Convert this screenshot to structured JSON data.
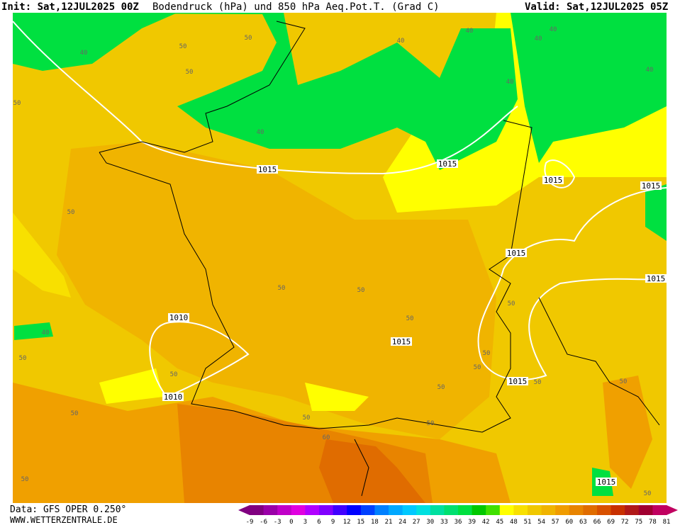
{
  "header": {
    "init": "Init: Sat,12JUL2025 00Z",
    "title": "Bodendruck (hPa) und 850 hPa Aeq.Pot.T. (Grad C)",
    "valid": "Valid: Sat,12JUL2025 05Z"
  },
  "footer": {
    "data": "Data: GFS OPER 0.250°",
    "site": "WWW.WETTERZENTRALE.DE"
  },
  "colorbar": {
    "ticks": [
      -9,
      -6,
      -3,
      0,
      3,
      6,
      9,
      12,
      15,
      18,
      21,
      24,
      27,
      30,
      33,
      36,
      39,
      42,
      45,
      48,
      51,
      54,
      57,
      60,
      63,
      66,
      69,
      72,
      75,
      78,
      81
    ],
    "colors": [
      "#800080",
      "#9a00a8",
      "#c000c8",
      "#e000e0",
      "#b000ff",
      "#8000ff",
      "#4000ff",
      "#0000ff",
      "#0040ff",
      "#0080ff",
      "#00a8ff",
      "#00c8ff",
      "#00e0e0",
      "#00e0a0",
      "#00e070",
      "#00e040",
      "#00c800",
      "#40e000",
      "#ffff00",
      "#f8e000",
      "#f0c800",
      "#f0b400",
      "#f09c00",
      "#e88400",
      "#e06c00",
      "#d85000",
      "#c83000",
      "#b01818",
      "#a00030",
      "#c00060"
    ]
  },
  "map": {
    "labels": [
      "40",
      "50",
      "50",
      "50",
      "50",
      "40",
      "40",
      "40",
      "40",
      "40",
      "40",
      "40",
      "1015",
      "1015",
      "1015",
      "1015",
      "50",
      "1015",
      "50",
      "50",
      "50",
      "1015",
      "1010",
      "1010",
      "40",
      "50",
      "50",
      "50",
      "50",
      "1015",
      "50",
      "50",
      "50",
      "60",
      "50",
      "50",
      "50",
      "50",
      "1015",
      "50",
      "1015",
      "50"
    ]
  }
}
